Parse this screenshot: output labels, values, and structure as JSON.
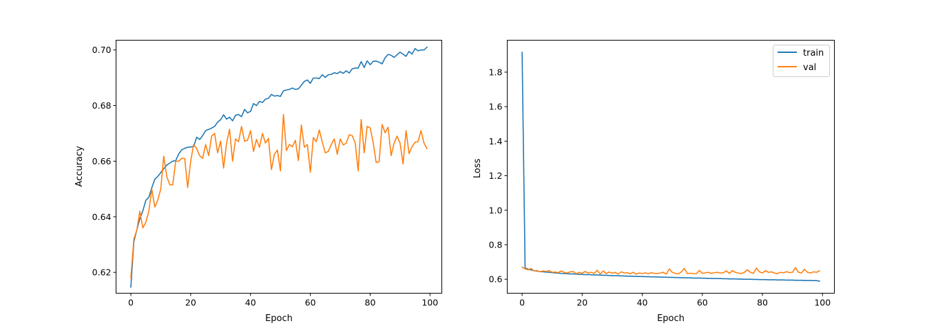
{
  "colors": {
    "train": "#1f77b4",
    "val": "#ff7f0e",
    "axes": "#000000",
    "background": "#ffffff"
  },
  "chart_data": [
    {
      "type": "line",
      "title": "",
      "xlabel": "Epoch",
      "ylabel": "Accuracy",
      "xlim": [
        -4.95,
        103.95
      ],
      "ylim": [
        0.6125,
        0.7035
      ],
      "xticks": [
        0,
        20,
        40,
        60,
        80,
        100
      ],
      "yticks": [
        0.62,
        0.64,
        0.66,
        0.68,
        0.7
      ],
      "ytick_labels": [
        "0.62",
        "0.64",
        "0.66",
        "0.68",
        "0.70"
      ],
      "legend": null,
      "grid": false,
      "x": "epochs 0-99",
      "series": [
        {
          "color": "#1f77b4",
          "values": [
            0.6147,
            0.631,
            0.6353,
            0.6393,
            0.6421,
            0.6459,
            0.647,
            0.6504,
            0.6535,
            0.6545,
            0.6559,
            0.6573,
            0.6586,
            0.6593,
            0.66,
            0.6602,
            0.6626,
            0.6641,
            0.6646,
            0.665,
            0.6651,
            0.6653,
            0.6686,
            0.6678,
            0.6692,
            0.671,
            0.6714,
            0.6719,
            0.6725,
            0.674,
            0.6749,
            0.6767,
            0.6751,
            0.6758,
            0.6745,
            0.6765,
            0.6768,
            0.676,
            0.6786,
            0.6774,
            0.6779,
            0.6807,
            0.68,
            0.6815,
            0.6811,
            0.6823,
            0.6826,
            0.684,
            0.6834,
            0.6836,
            0.6833,
            0.6853,
            0.6856,
            0.6858,
            0.6863,
            0.6858,
            0.686,
            0.6873,
            0.6887,
            0.6892,
            0.688,
            0.6899,
            0.6899,
            0.6897,
            0.6911,
            0.6901,
            0.6911,
            0.6912,
            0.6918,
            0.6915,
            0.6922,
            0.6916,
            0.6925,
            0.6917,
            0.6932,
            0.6935,
            0.6935,
            0.6958,
            0.6937,
            0.6961,
            0.6947,
            0.6959,
            0.696,
            0.6956,
            0.695,
            0.6972,
            0.6984,
            0.6981,
            0.6973,
            0.6983,
            0.6992,
            0.6985,
            0.6977,
            0.6995,
            0.6985,
            0.7005,
            0.6997,
            0.7,
            0.7,
            0.701
          ]
        },
        {
          "color": "#ff7f0e",
          "values": [
            0.618,
            0.632,
            0.6352,
            0.642,
            0.636,
            0.638,
            0.642,
            0.65,
            0.6435,
            0.646,
            0.65,
            0.6618,
            0.6545,
            0.6515,
            0.6515,
            0.66,
            0.66,
            0.661,
            0.661,
            0.6505,
            0.66,
            0.666,
            0.6645,
            0.662,
            0.661,
            0.666,
            0.662,
            0.669,
            0.67,
            0.663,
            0.6672,
            0.6575,
            0.6665,
            0.6715,
            0.66,
            0.668,
            0.667,
            0.6725,
            0.6672,
            0.6675,
            0.671,
            0.6635,
            0.6678,
            0.665,
            0.67,
            0.6665,
            0.6682,
            0.657,
            0.6625,
            0.664,
            0.6565,
            0.6768,
            0.6638,
            0.666,
            0.6652,
            0.6675,
            0.6602,
            0.673,
            0.665,
            0.666,
            0.656,
            0.6685,
            0.667,
            0.6712,
            0.6668,
            0.663,
            0.6635,
            0.666,
            0.668,
            0.6625,
            0.668,
            0.6658,
            0.6665,
            0.6695,
            0.6692,
            0.6665,
            0.6565,
            0.675,
            0.663,
            0.6725,
            0.672,
            0.6668,
            0.6595,
            0.6598,
            0.6732,
            0.6702,
            0.6722,
            0.662,
            0.6665,
            0.669,
            0.6665,
            0.659,
            0.671,
            0.6627,
            0.6652,
            0.6668,
            0.667,
            0.671,
            0.6665,
            0.6645
          ]
        }
      ]
    },
    {
      "type": "line",
      "title": "",
      "xlabel": "Epoch",
      "ylabel": "Loss",
      "xlim": [
        -4.95,
        103.95
      ],
      "ylim": [
        0.519,
        1.985
      ],
      "xticks": [
        0,
        20,
        40,
        60,
        80,
        100
      ],
      "yticks": [
        0.6,
        0.8,
        1.0,
        1.2,
        1.4,
        1.6,
        1.8
      ],
      "ytick_labels": [
        "0.6",
        "0.8",
        "1.0",
        "1.2",
        "1.4",
        "1.6",
        "1.8"
      ],
      "legend": "top-right",
      "grid": false,
      "x": "epochs 0-99",
      "series": [
        {
          "name": "train",
          "color": "#1f77b4",
          "values": [
            1.915,
            0.666,
            0.658,
            0.654,
            0.65,
            0.647,
            0.645,
            0.643,
            0.641,
            0.64,
            0.638,
            0.637,
            0.635,
            0.634,
            0.633,
            0.632,
            0.631,
            0.631,
            0.63,
            0.629,
            0.628,
            0.627,
            0.627,
            0.626,
            0.625,
            0.625,
            0.624,
            0.623,
            0.623,
            0.622,
            0.621,
            0.621,
            0.62,
            0.62,
            0.619,
            0.618,
            0.618,
            0.617,
            0.617,
            0.616,
            0.616,
            0.615,
            0.615,
            0.614,
            0.614,
            0.613,
            0.613,
            0.612,
            0.612,
            0.611,
            0.611,
            0.61,
            0.61,
            0.609,
            0.609,
            0.608,
            0.608,
            0.607,
            0.607,
            0.607,
            0.606,
            0.606,
            0.605,
            0.605,
            0.604,
            0.604,
            0.604,
            0.603,
            0.603,
            0.602,
            0.602,
            0.602,
            0.601,
            0.601,
            0.6,
            0.6,
            0.6,
            0.599,
            0.599,
            0.598,
            0.598,
            0.598,
            0.597,
            0.597,
            0.597,
            0.596,
            0.596,
            0.596,
            0.595,
            0.595,
            0.595,
            0.594,
            0.594,
            0.594,
            0.593,
            0.593,
            0.593,
            0.592,
            0.592,
            0.589
          ]
        },
        {
          "name": "val",
          "color": "#ff7f0e",
          "values": [
            0.67,
            0.66,
            0.655,
            0.662,
            0.648,
            0.65,
            0.643,
            0.648,
            0.645,
            0.65,
            0.64,
            0.642,
            0.638,
            0.648,
            0.64,
            0.636,
            0.643,
            0.645,
            0.632,
            0.64,
            0.635,
            0.645,
            0.636,
            0.64,
            0.634,
            0.652,
            0.63,
            0.648,
            0.633,
            0.642,
            0.635,
            0.64,
            0.63,
            0.643,
            0.636,
            0.638,
            0.632,
            0.64,
            0.63,
            0.636,
            0.633,
            0.637,
            0.632,
            0.638,
            0.634,
            0.633,
            0.636,
            0.64,
            0.63,
            0.66,
            0.64,
            0.634,
            0.631,
            0.642,
            0.663,
            0.633,
            0.635,
            0.633,
            0.632,
            0.651,
            0.634,
            0.637,
            0.64,
            0.634,
            0.638,
            0.64,
            0.636,
            0.638,
            0.648,
            0.634,
            0.65,
            0.64,
            0.636,
            0.633,
            0.64,
            0.655,
            0.64,
            0.634,
            0.665,
            0.643,
            0.636,
            0.65,
            0.64,
            0.643,
            0.636,
            0.632,
            0.64,
            0.637,
            0.644,
            0.638,
            0.64,
            0.667,
            0.64,
            0.636,
            0.658,
            0.64,
            0.636,
            0.643,
            0.64,
            0.649
          ]
        }
      ]
    }
  ]
}
